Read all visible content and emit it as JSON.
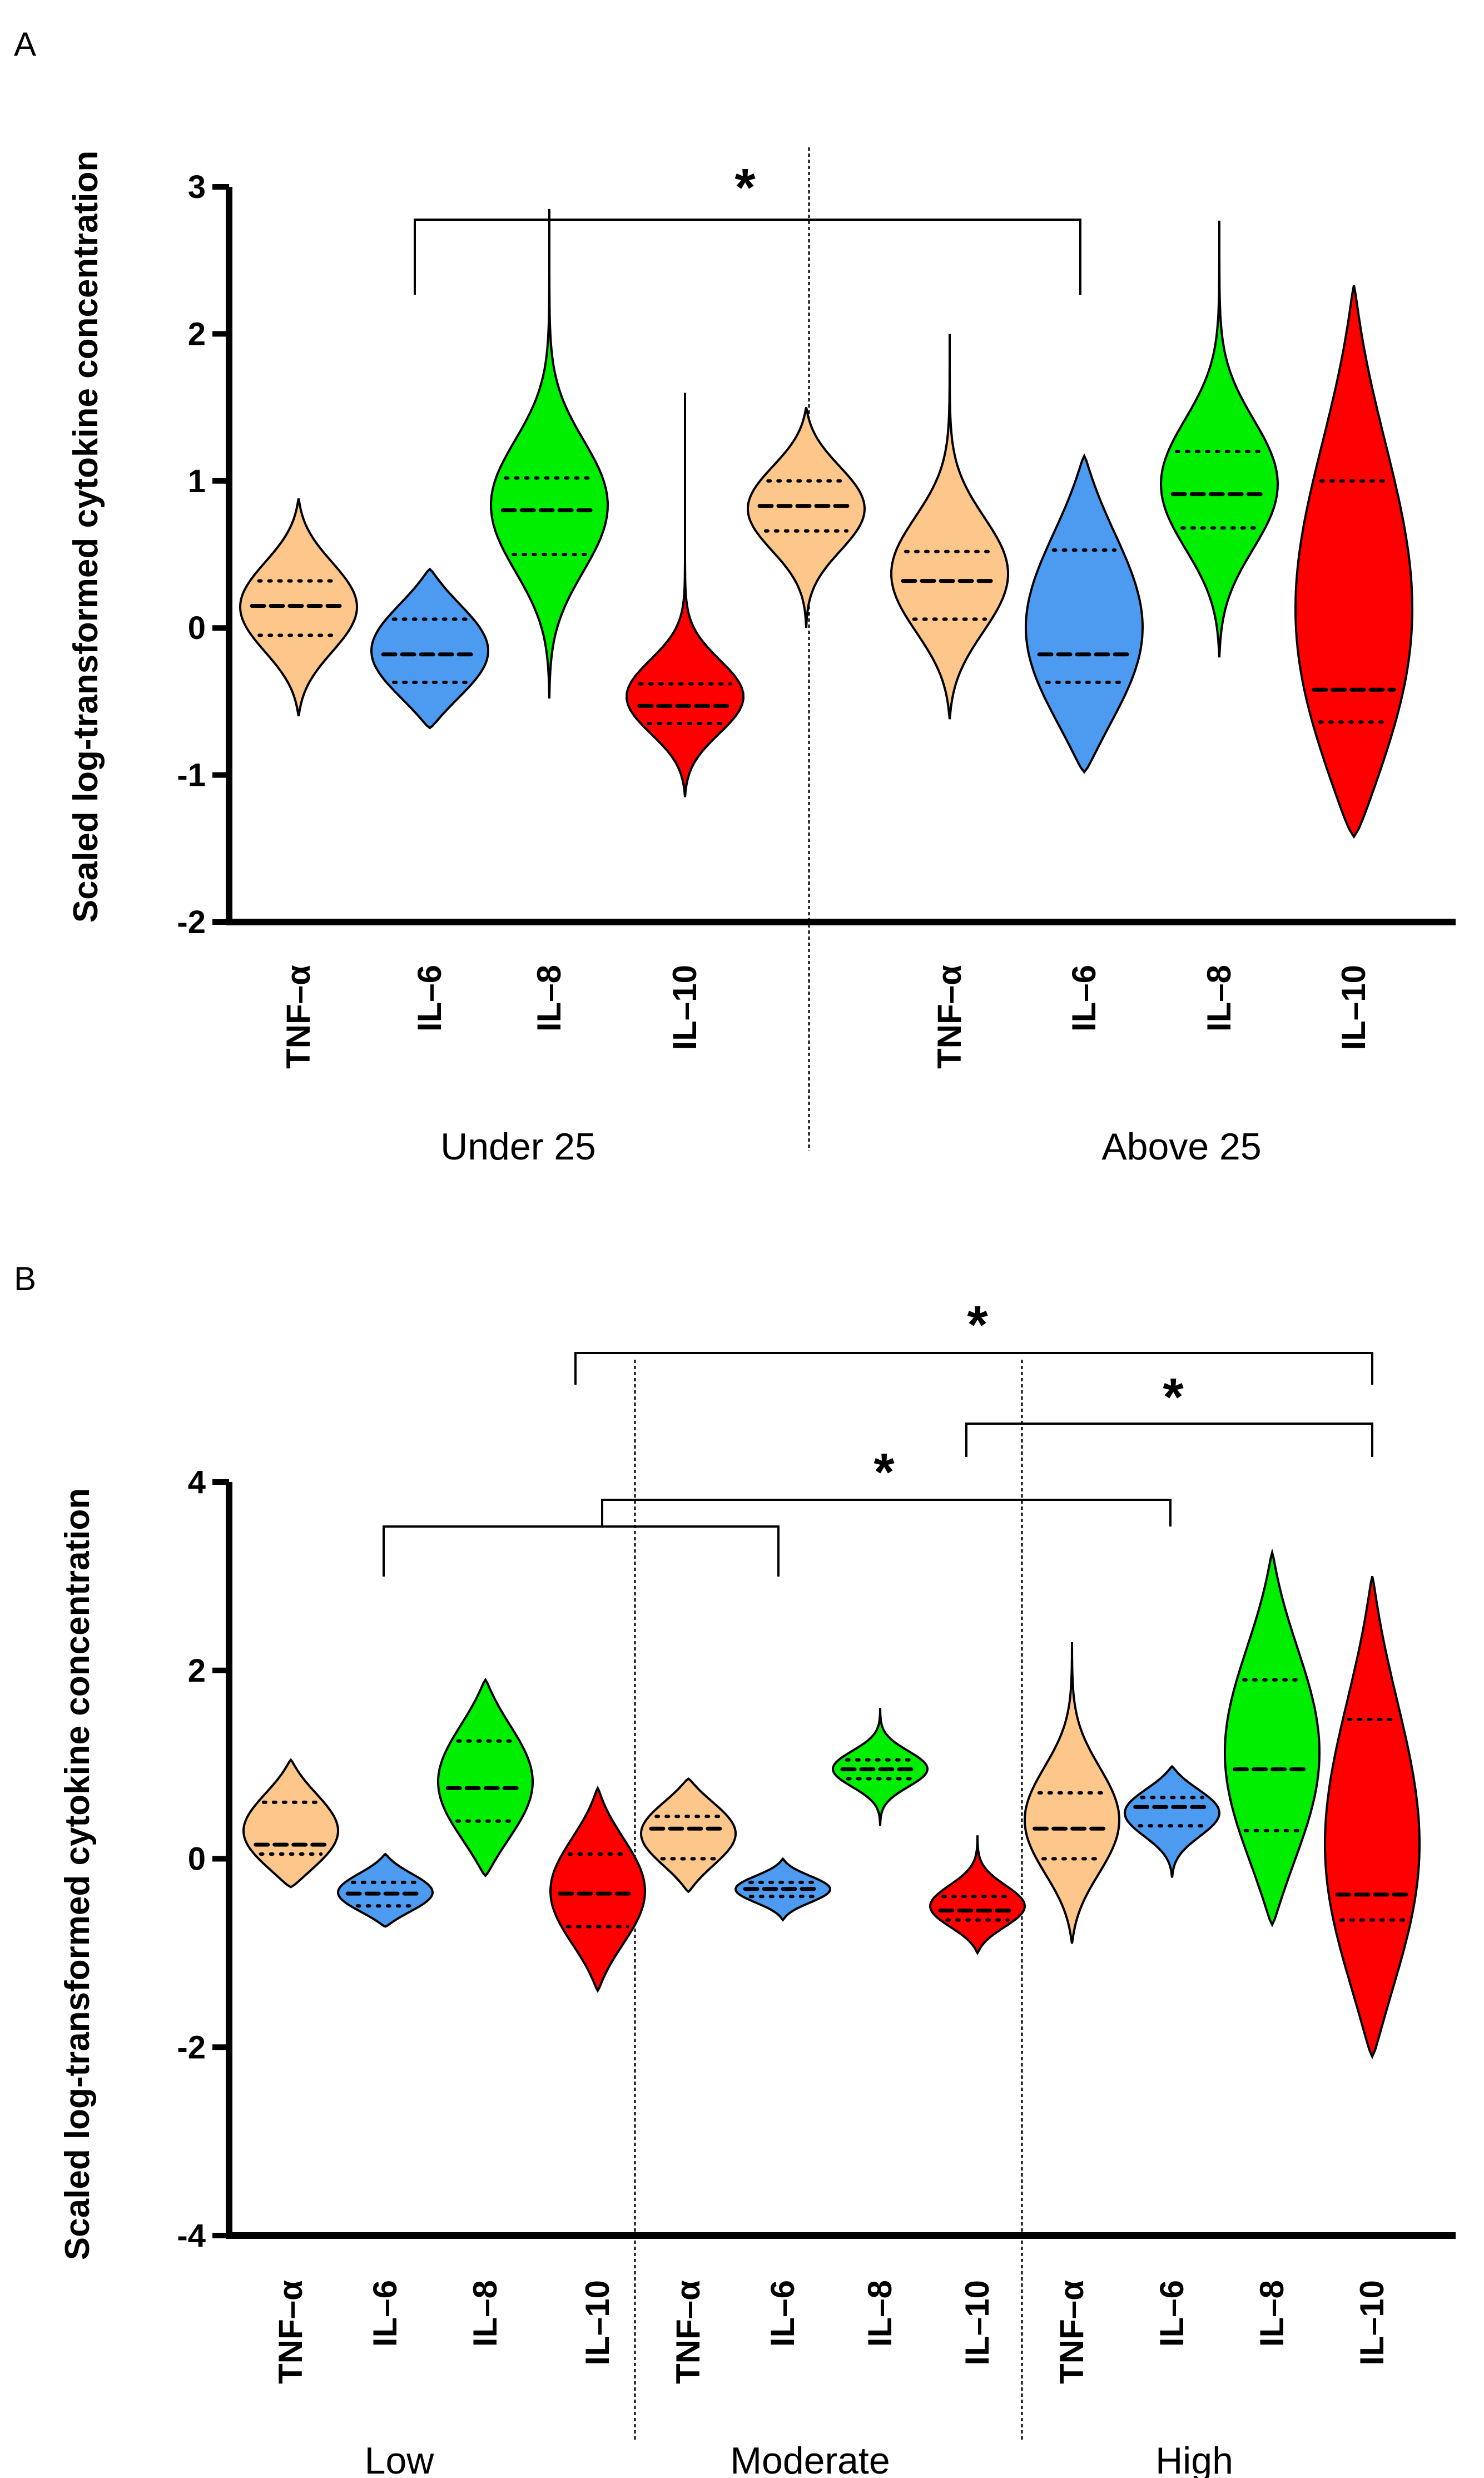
{
  "chart_data": [
    {
      "type": "violin",
      "panel_letter": "A",
      "ylabel": "Scaled log-transformed cytokine concentration",
      "ylim": [
        -2,
        3
      ],
      "yticks": [
        "-2",
        "-1",
        "0",
        "1",
        "2",
        "3"
      ],
      "groups": [
        "Under 25",
        "Above 25"
      ],
      "categories": [
        "TNF–α",
        "IL–6",
        "IL–8",
        "IL–10",
        "TNF–α",
        "IL–6",
        "IL–8",
        "IL–10"
      ],
      "series": [
        {
          "name": "TNF–α",
          "group": "Under 25",
          "color": "#FDC68A",
          "min": -0.6,
          "max": 0.88,
          "median": 0.15,
          "q1": -0.05,
          "q3": 0.32
        },
        {
          "name": "IL–6",
          "group": "Under 25",
          "color": "#4D9BF0",
          "min": -0.68,
          "max": 0.4,
          "median": -0.18,
          "q1": -0.37,
          "q3": 0.06
        },
        {
          "name": "IL–8",
          "group": "Under 25",
          "color": "#00EE00",
          "min": -0.48,
          "max": 2.85,
          "median": 0.8,
          "q1": 0.5,
          "q3": 1.02
        },
        {
          "name": "IL–10",
          "group": "Under 25",
          "color": "#FF0000",
          "min": -1.15,
          "max": 1.6,
          "median": -0.53,
          "q1": -0.65,
          "q3": -0.38
        },
        {
          "name": "TNF–α",
          "group": "Above 25",
          "color": "#FDC68A",
          "min": -0.62,
          "max": 2.0,
          "median": 0.32,
          "q1": 0.06,
          "q3": 0.52
        },
        {
          "name": "IL–6",
          "group": "Above 25",
          "color": "#4D9BF0",
          "min": -0.98,
          "max": 1.17,
          "median": -0.18,
          "q1": -0.37,
          "q3": 0.53
        },
        {
          "name": "IL–8",
          "group": "Above 25",
          "color": "#00EE00",
          "min": -0.2,
          "max": 2.77,
          "median": 0.91,
          "q1": 0.68,
          "q3": 1.2
        },
        {
          "name": "IL–10",
          "group": "Above 25",
          "color": "#FF0000",
          "min": -1.42,
          "max": 2.33,
          "median": -0.42,
          "q1": -0.64,
          "q3": 1.0
        }
      ],
      "extra_series": [
        {
          "name": "unlabeled",
          "group": "Under 25",
          "color": "#FDC68A",
          "min": 0.0,
          "max": 1.5,
          "median": 0.83,
          "q1": 0.66,
          "q3": 1.0
        }
      ],
      "annotations": [
        {
          "text": "*",
          "from": "IL–6 (Under 25)",
          "to": "IL–6 (Above 25)"
        }
      ]
    },
    {
      "type": "violin",
      "panel_letter": "B",
      "ylabel": "Scaled log-transformed cytokine concentration",
      "ylim": [
        -4,
        4
      ],
      "yticks": [
        "-4",
        "-2",
        "0",
        "2",
        "4"
      ],
      "groups": [
        "Low",
        "Moderate",
        "High"
      ],
      "categories": [
        "TNF–α",
        "IL–6",
        "IL–8",
        "IL–10",
        "TNF–α",
        "IL–6",
        "IL–8",
        "IL–10",
        "TNF–α",
        "IL–6",
        "IL–8",
        "IL–10"
      ],
      "series": [
        {
          "name": "TNF–α",
          "group": "Low",
          "color": "#FDC68A",
          "min": -0.3,
          "max": 1.05,
          "median": 0.15,
          "q1": 0.05,
          "q3": 0.6
        },
        {
          "name": "IL–6",
          "group": "Low",
          "color": "#4D9BF0",
          "min": -0.72,
          "max": 0.05,
          "median": -0.37,
          "q1": -0.5,
          "q3": -0.25
        },
        {
          "name": "IL–8",
          "group": "Low",
          "color": "#00EE00",
          "min": -0.18,
          "max": 1.9,
          "median": 0.75,
          "q1": 0.4,
          "q3": 1.25
        },
        {
          "name": "IL–10",
          "group": "Low",
          "color": "#FF0000",
          "min": -1.4,
          "max": 0.75,
          "median": -0.37,
          "q1": -0.72,
          "q3": 0.05
        },
        {
          "name": "TNF–α",
          "group": "Moderate",
          "color": "#FDC68A",
          "min": -0.35,
          "max": 0.85,
          "median": 0.32,
          "q1": 0.0,
          "q3": 0.45
        },
        {
          "name": "IL–6",
          "group": "Moderate",
          "color": "#4D9BF0",
          "min": -0.65,
          "max": 0.0,
          "median": -0.32,
          "q1": -0.4,
          "q3": -0.25
        },
        {
          "name": "IL–8",
          "group": "Moderate",
          "color": "#00EE00",
          "min": 0.35,
          "max": 1.6,
          "median": 0.95,
          "q1": 0.85,
          "q3": 1.05
        },
        {
          "name": "IL–10",
          "group": "Moderate",
          "color": "#FF0000",
          "min": -1.0,
          "max": 0.25,
          "median": -0.55,
          "q1": -0.65,
          "q3": -0.4
        },
        {
          "name": "TNF–α",
          "group": "High",
          "color": "#FDC68A",
          "min": -0.9,
          "max": 2.3,
          "median": 0.32,
          "q1": 0.0,
          "q3": 0.7
        },
        {
          "name": "IL–6",
          "group": "High",
          "color": "#4D9BF0",
          "min": -0.2,
          "max": 0.98,
          "median": 0.55,
          "q1": 0.35,
          "q3": 0.65
        },
        {
          "name": "IL–8",
          "group": "High",
          "color": "#00EE00",
          "min": -0.7,
          "max": 3.25,
          "median": 0.95,
          "q1": 0.3,
          "q3": 1.9
        },
        {
          "name": "IL–10",
          "group": "High",
          "color": "#FF0000",
          "min": -2.1,
          "max": 3.0,
          "median": -0.38,
          "q1": -0.65,
          "q3": 1.48
        }
      ],
      "annotations": [
        {
          "text": "*",
          "from": "IL–10 (Low)",
          "to": "IL–10 (High)"
        },
        {
          "text": "*",
          "from": "IL–10 (Moderate)",
          "to": "IL–10 (High)"
        },
        {
          "text": "*",
          "from": "IL–6 (Low) vs IL–6 (Moderate)",
          "to": "IL–6 (High)"
        }
      ]
    }
  ]
}
